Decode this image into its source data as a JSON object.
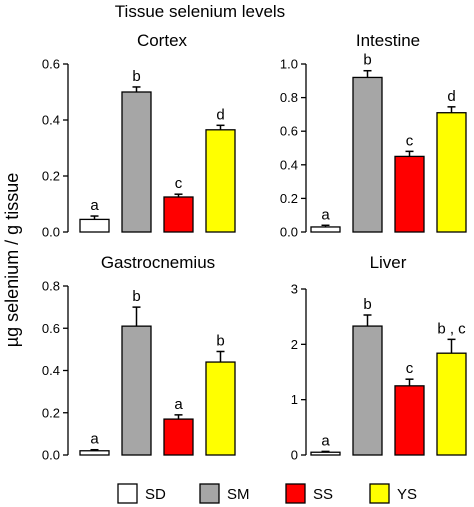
{
  "figure": {
    "title": "Tissue selenium levels",
    "ylabel": "µg selenium / g tissue"
  },
  "colors": {
    "SD": "#ffffff",
    "SM": "#a6a6a6",
    "SS": "#ff0000",
    "YS": "#ffff00"
  },
  "legend": [
    {
      "key": "SD",
      "label": "SD"
    },
    {
      "key": "SM",
      "label": "SM"
    },
    {
      "key": "SS",
      "label": "SS"
    },
    {
      "key": "YS",
      "label": "YS"
    }
  ],
  "chart_data": [
    {
      "type": "bar",
      "title": "Cortex",
      "categories": [
        "SD",
        "SM",
        "SS",
        "YS"
      ],
      "values": [
        0.045,
        0.5,
        0.125,
        0.365
      ],
      "errors": [
        0.012,
        0.018,
        0.01,
        0.016
      ],
      "labels": [
        "a",
        "b",
        "c",
        "d"
      ],
      "ylim": [
        0,
        0.6
      ],
      "yticks": [
        "0.0",
        "0.2",
        "0.4",
        "0.6"
      ]
    },
    {
      "type": "bar",
      "title": "Intestine",
      "categories": [
        "SD",
        "SM",
        "SS",
        "YS"
      ],
      "values": [
        0.03,
        0.92,
        0.45,
        0.71
      ],
      "errors": [
        0.01,
        0.04,
        0.03,
        0.035
      ],
      "labels": [
        "a",
        "b",
        "c",
        "d"
      ],
      "ylim": [
        0,
        1.0
      ],
      "yticks": [
        "0.0",
        "0.2",
        "0.4",
        "0.6",
        "0.8",
        "1.0"
      ]
    },
    {
      "type": "bar",
      "title": "Gastrocnemius",
      "categories": [
        "SD",
        "SM",
        "SS",
        "YS"
      ],
      "values": [
        0.02,
        0.61,
        0.17,
        0.44
      ],
      "errors": [
        0.005,
        0.09,
        0.02,
        0.05
      ],
      "labels": [
        "a",
        "b",
        "a",
        "b"
      ],
      "ylim": [
        0,
        0.8
      ],
      "yticks": [
        "0.0",
        "0.2",
        "0.4",
        "0.6",
        "0.8"
      ]
    },
    {
      "type": "bar",
      "title": "Liver",
      "categories": [
        "SD",
        "SM",
        "SS",
        "YS"
      ],
      "values": [
        0.05,
        2.33,
        1.25,
        1.84
      ],
      "errors": [
        0.015,
        0.2,
        0.12,
        0.25
      ],
      "labels": [
        "a",
        "b",
        "c",
        "b , c"
      ],
      "ylim": [
        0,
        3
      ],
      "yticks": [
        "0",
        "1",
        "2",
        "3"
      ]
    }
  ]
}
